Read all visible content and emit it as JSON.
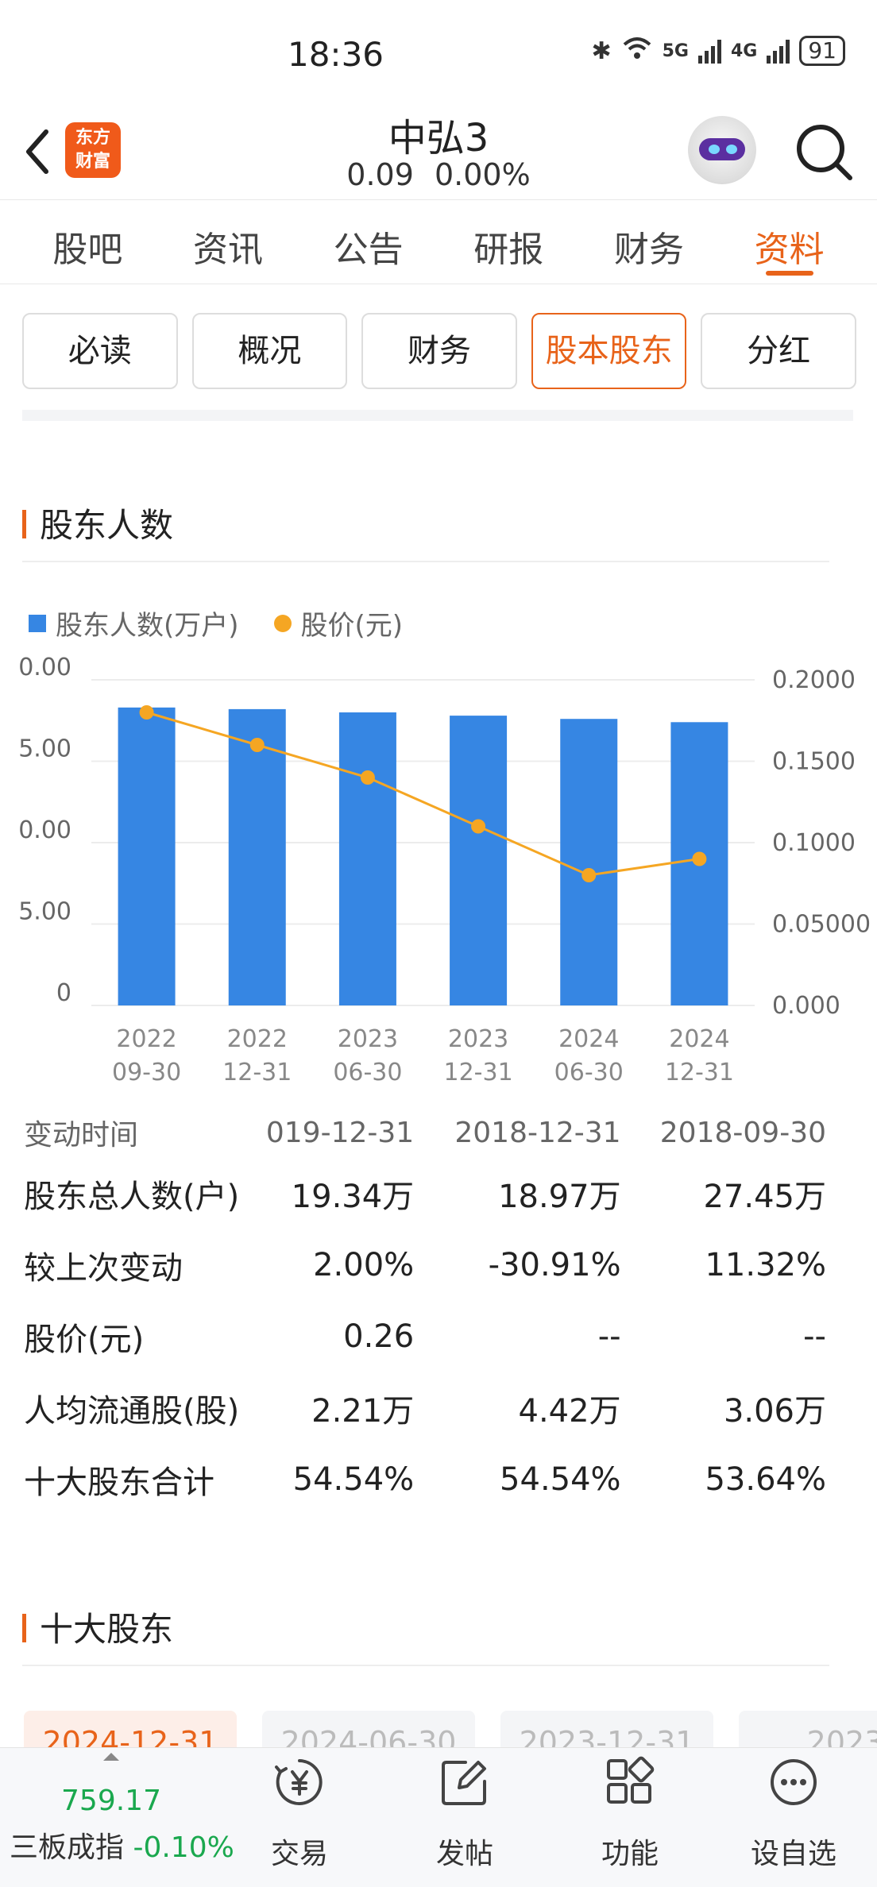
{
  "status": {
    "time": "18:36",
    "battery": "91",
    "net1": "5G",
    "net2": "4G"
  },
  "header": {
    "logo_line1": "东方",
    "logo_line2": "财富",
    "stock_name": "中弘3",
    "price": "0.09",
    "change_pct": "0.00%"
  },
  "tabs": [
    {
      "label": "股吧"
    },
    {
      "label": "资讯"
    },
    {
      "label": "公告"
    },
    {
      "label": "研报"
    },
    {
      "label": "财务"
    },
    {
      "label": "资料",
      "active": true
    }
  ],
  "subtabs": [
    {
      "label": "必读"
    },
    {
      "label": "概况"
    },
    {
      "label": "财务"
    },
    {
      "label": "股本股东",
      "active": true
    },
    {
      "label": "分红"
    }
  ],
  "section1": {
    "title": "股东人数"
  },
  "legend": {
    "bars": "股东人数(万户)",
    "line": "股价(元)"
  },
  "chart_data": {
    "type": "bar",
    "categories": [
      "2022 09-30",
      "2022 12-31",
      "2023 06-30",
      "2023 12-31",
      "2024 06-30",
      "2024 12-31"
    ],
    "category_lines": [
      [
        "2022",
        "09-30"
      ],
      [
        "2022",
        "12-31"
      ],
      [
        "2023",
        "06-30"
      ],
      [
        "2023",
        "12-31"
      ],
      [
        "2024",
        "06-30"
      ],
      [
        "2024",
        "12-31"
      ]
    ],
    "series": [
      {
        "name": "股东人数(万户)",
        "type": "bar",
        "axis": "left",
        "values": [
          18.3,
          18.2,
          18.0,
          17.8,
          17.6,
          17.4
        ]
      },
      {
        "name": "股价(元)",
        "type": "line",
        "axis": "right",
        "values": [
          0.18,
          0.16,
          0.14,
          0.11,
          0.08,
          0.09
        ]
      }
    ],
    "left_axis": {
      "ticks": [
        "0",
        "5.00",
        "0.00",
        "5.00",
        "0.00"
      ],
      "range": [
        0,
        20
      ]
    },
    "right_axis": {
      "ticks": [
        "0.000",
        "0.05000",
        "0.1000",
        "0.1500",
        "0.2000"
      ],
      "range": [
        0,
        0.2
      ]
    },
    "colors": {
      "bar": "#3686e3",
      "line": "#f5a623"
    },
    "grid": true,
    "legend_position": "top-left"
  },
  "table": {
    "head": [
      "变动时间",
      "019-12-31",
      "2018-12-31",
      "2018-09-30"
    ],
    "rows": [
      [
        "股东总人数(户)",
        "19.34万",
        "18.97万",
        "27.45万"
      ],
      [
        "较上次变动",
        "2.00%",
        "-30.91%",
        "11.32%"
      ],
      [
        "股价(元)",
        "0.26",
        "--",
        "--"
      ],
      [
        "人均流通股(股)",
        "2.21万",
        "4.42万",
        "3.06万"
      ],
      [
        "十大股东合计",
        "54.54%",
        "54.54%",
        "53.64%"
      ]
    ]
  },
  "section2": {
    "title": "十大股东"
  },
  "date_chips": [
    "2024-12-31",
    "2024-06-30",
    "2023-12-31",
    "2023"
  ],
  "bottom": {
    "index_value": "759.17",
    "index_name": "三板成指",
    "index_change": "-0.10%",
    "nav": [
      {
        "label": "交易",
        "icon": "yen-icon"
      },
      {
        "label": "发帖",
        "icon": "edit-icon"
      },
      {
        "label": "功能",
        "icon": "grid-icon"
      },
      {
        "label": "设自选",
        "icon": "more-icon"
      }
    ]
  }
}
